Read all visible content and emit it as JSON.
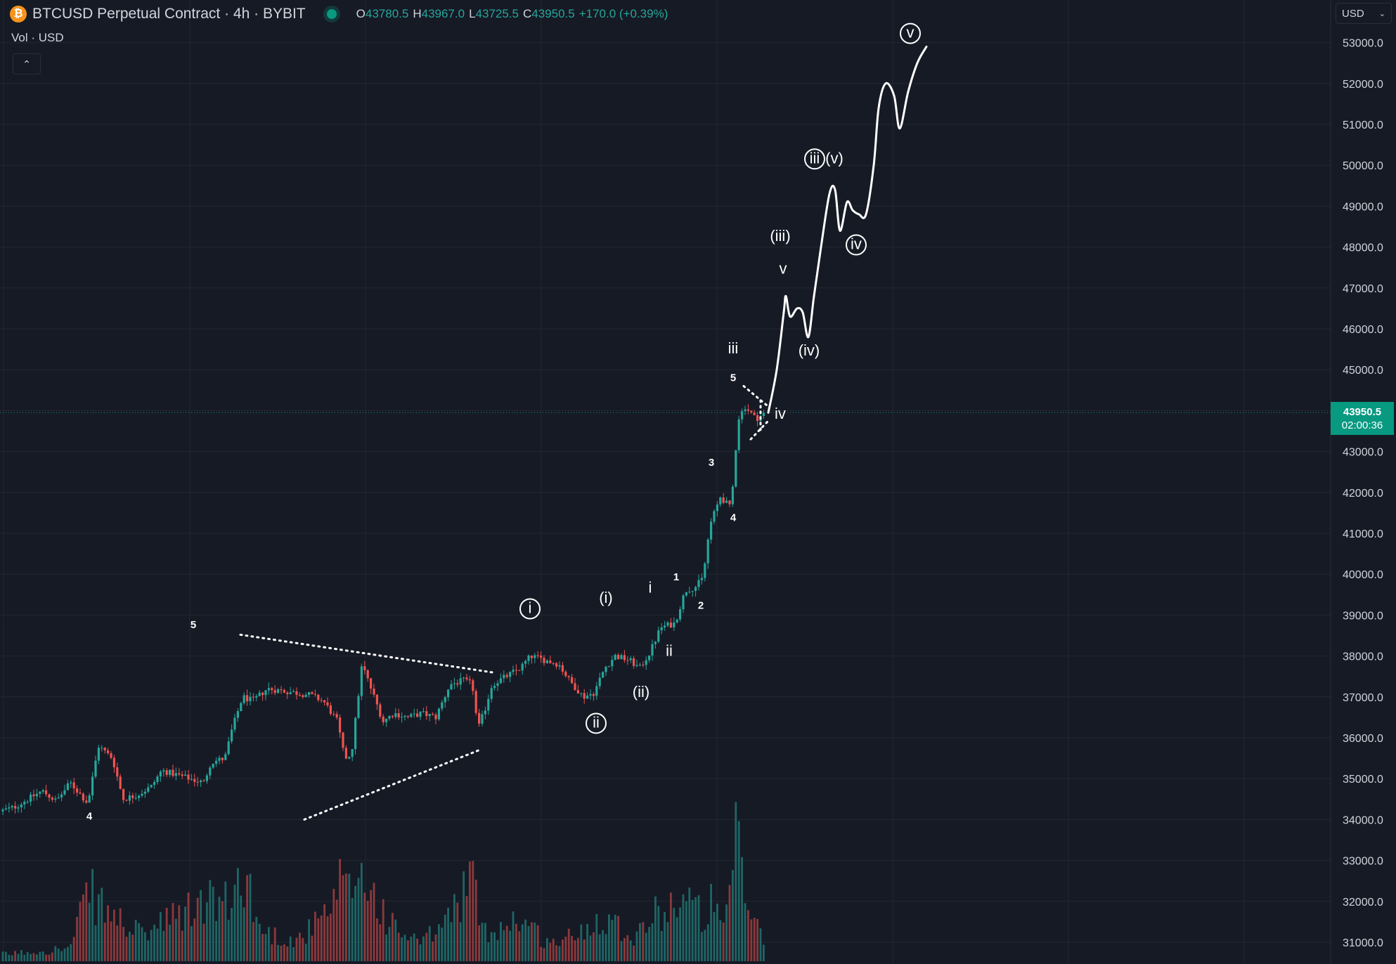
{
  "header": {
    "title": "BTCUSD Perpetual Contract · 4h · BYBIT",
    "open_key": "O",
    "open": "43780.5",
    "high_key": "H",
    "high": "43967.0",
    "low_key": "L",
    "low": "43725.5",
    "close_key": "C",
    "close": "43950.5",
    "change": "+170.0 (+0.39%)"
  },
  "vol_label": "Vol · USD",
  "currency_select": {
    "value": "USD"
  },
  "price_tag": {
    "price": "43950.5",
    "countdown": "02:00:36"
  },
  "colors": {
    "bg": "#161a25",
    "up": "#26a69a",
    "down": "#ef5350",
    "grid": "#232733",
    "annotation": "#ffffff"
  },
  "chart_data": {
    "type": "candlestick",
    "symbol": "BTCUSD",
    "interval": "4h",
    "exchange": "BYBIT",
    "ylim": [
      30700,
      53400
    ],
    "y_ticks": [
      "53000.0",
      "52000.0",
      "51000.0",
      "50000.0",
      "49000.0",
      "48000.0",
      "47000.0",
      "46000.0",
      "45000.0",
      "44000.0",
      "43000.0",
      "42000.0",
      "41000.0",
      "40000.0",
      "39000.0",
      "38000.0",
      "37000.0",
      "36000.0",
      "35000.0",
      "34000.0",
      "33000.0",
      "32000.0",
      "31000.0"
    ],
    "last_price": 43950.5,
    "price_anchors": [
      [
        0,
        34200
      ],
      [
        20,
        34300
      ],
      [
        40,
        34500
      ],
      [
        60,
        34700
      ],
      [
        80,
        34450
      ],
      [
        100,
        34900
      ],
      [
        125,
        34400
      ],
      [
        140,
        35800
      ],
      [
        160,
        35500
      ],
      [
        175,
        34500
      ],
      [
        195,
        34600
      ],
      [
        215,
        34800
      ],
      [
        230,
        35200
      ],
      [
        250,
        35100
      ],
      [
        270,
        35000
      ],
      [
        290,
        34900
      ],
      [
        300,
        35400
      ],
      [
        320,
        35500
      ],
      [
        330,
        36200
      ],
      [
        345,
        37000
      ],
      [
        360,
        36900
      ],
      [
        380,
        37200
      ],
      [
        400,
        37150
      ],
      [
        420,
        37100
      ],
      [
        440,
        37050
      ],
      [
        460,
        36900
      ],
      [
        480,
        36400
      ],
      [
        490,
        35500
      ],
      [
        500,
        35600
      ],
      [
        515,
        37800
      ],
      [
        530,
        37100
      ],
      [
        545,
        36400
      ],
      [
        560,
        36600
      ],
      [
        580,
        36500
      ],
      [
        600,
        36600
      ],
      [
        620,
        36500
      ],
      [
        640,
        37300
      ],
      [
        660,
        37400
      ],
      [
        672,
        37300
      ],
      [
        680,
        36200
      ],
      [
        690,
        36700
      ],
      [
        700,
        37300
      ],
      [
        720,
        37500
      ],
      [
        740,
        37700
      ],
      [
        755,
        38000
      ],
      [
        775,
        37900
      ],
      [
        795,
        37800
      ],
      [
        810,
        37400
      ],
      [
        830,
        37000
      ],
      [
        845,
        37100
      ],
      [
        860,
        37700
      ],
      [
        875,
        38000
      ],
      [
        895,
        37900
      ],
      [
        910,
        37700
      ],
      [
        925,
        38100
      ],
      [
        940,
        38700
      ],
      [
        960,
        38800
      ],
      [
        975,
        39600
      ],
      [
        990,
        39700
      ],
      [
        1000,
        39900
      ],
      [
        1010,
        41200
      ],
      [
        1025,
        41900
      ],
      [
        1040,
        41600
      ],
      [
        1050,
        43800
      ],
      [
        1060,
        44100
      ],
      [
        1075,
        43800
      ],
      [
        1090,
        43950
      ]
    ],
    "volume_profile": [
      [
        0,
        3
      ],
      [
        100,
        6
      ],
      [
        126,
        32
      ],
      [
        150,
        23
      ],
      [
        200,
        12
      ],
      [
        300,
        28
      ],
      [
        330,
        25
      ],
      [
        345,
        45
      ],
      [
        370,
        14
      ],
      [
        420,
        9
      ],
      [
        470,
        22
      ],
      [
        485,
        35
      ],
      [
        495,
        30
      ],
      [
        510,
        42
      ],
      [
        530,
        31
      ],
      [
        560,
        15
      ],
      [
        600,
        8
      ],
      [
        640,
        20
      ],
      [
        668,
        39
      ],
      [
        690,
        13
      ],
      [
        740,
        20
      ],
      [
        780,
        8
      ],
      [
        820,
        12
      ],
      [
        860,
        22
      ],
      [
        900,
        11
      ],
      [
        930,
        21
      ],
      [
        970,
        29
      ],
      [
        1000,
        21
      ],
      [
        1014,
        27
      ],
      [
        1030,
        12
      ],
      [
        1050,
        60
      ],
      [
        1060,
        28
      ],
      [
        1075,
        17
      ],
      [
        1088,
        7
      ]
    ],
    "projection": {
      "description": "hand-drawn projected path",
      "points": [
        [
          1093,
          43950
        ],
        [
          1105,
          45000
        ],
        [
          1115,
          46400
        ],
        [
          1118,
          46800
        ],
        [
          1124,
          46300
        ],
        [
          1134,
          46500
        ],
        [
          1142,
          46400
        ],
        [
          1150,
          45800
        ],
        [
          1158,
          46800
        ],
        [
          1168,
          48000
        ],
        [
          1180,
          49300
        ],
        [
          1188,
          49400
        ],
        [
          1195,
          48400
        ],
        [
          1205,
          49100
        ],
        [
          1213,
          48900
        ],
        [
          1222,
          48800
        ],
        [
          1232,
          48800
        ],
        [
          1243,
          50000
        ],
        [
          1250,
          51400
        ],
        [
          1260,
          52000
        ],
        [
          1272,
          51700
        ],
        [
          1280,
          50900
        ],
        [
          1292,
          51800
        ],
        [
          1305,
          52500
        ],
        [
          1318,
          52900
        ]
      ]
    },
    "wave_labels": [
      {
        "text": "5",
        "x": 275,
        "price": 38680,
        "circled": false
      },
      {
        "text": "4",
        "x": 127,
        "price": 34000,
        "circled": false
      },
      {
        "text": "i",
        "x": 754,
        "price": 39050,
        "circled": true
      },
      {
        "text": "ii",
        "x": 848,
        "price": 36250,
        "circled": true
      },
      {
        "text": "(i)",
        "x": 862,
        "price": 39300,
        "circled": false
      },
      {
        "text": "(ii)",
        "x": 912,
        "price": 37000,
        "circled": false
      },
      {
        "text": "i",
        "x": 925,
        "price": 39550,
        "circled": false
      },
      {
        "text": "ii",
        "x": 952,
        "price": 38000,
        "circled": false
      },
      {
        "text": "1",
        "x": 962,
        "price": 39850,
        "circled": false
      },
      {
        "text": "2",
        "x": 997,
        "price": 39150,
        "circled": false
      },
      {
        "text": "3",
        "x": 1012,
        "price": 42650,
        "circled": false
      },
      {
        "text": "4",
        "x": 1043,
        "price": 41300,
        "circled": false
      },
      {
        "text": "5",
        "x": 1043,
        "price": 44720,
        "circled": false
      },
      {
        "text": "iii",
        "x": 1043,
        "price": 45400,
        "circled": false
      },
      {
        "text": "iv",
        "x": 1110,
        "price": 43800,
        "circled": false
      },
      {
        "text": "v",
        "x": 1114,
        "price": 47350,
        "circled": false
      },
      {
        "text": "(iii)",
        "x": 1110,
        "price": 48150,
        "circled": false
      },
      {
        "text": "(iv)",
        "x": 1151,
        "price": 45350,
        "circled": false
      },
      {
        "text": "iii",
        "x": 1159,
        "price": 50050,
        "circled": true
      },
      {
        "text": "(v)",
        "x": 1187,
        "price": 50050,
        "circled": false
      },
      {
        "text": "iv",
        "x": 1218,
        "price": 47950,
        "circled": true
      },
      {
        "text": "v",
        "x": 1295,
        "price": 53120,
        "circled": true
      }
    ],
    "trendlines": [
      {
        "style": "dotted",
        "from": [
          342,
          38520
        ],
        "to": [
          700,
          37600
        ]
      },
      {
        "style": "dotted",
        "from": [
          433,
          34000
        ],
        "to": [
          682,
          35700
        ]
      },
      {
        "style": "dotted",
        "from": [
          1058,
          44600
        ],
        "to": [
          1093,
          44100
        ]
      },
      {
        "style": "dotted",
        "from": [
          1068,
          43300
        ],
        "to": [
          1093,
          43750
        ]
      },
      {
        "style": "dotted",
        "from": [
          1082,
          44250
        ],
        "to": [
          1082,
          43500
        ]
      }
    ]
  }
}
